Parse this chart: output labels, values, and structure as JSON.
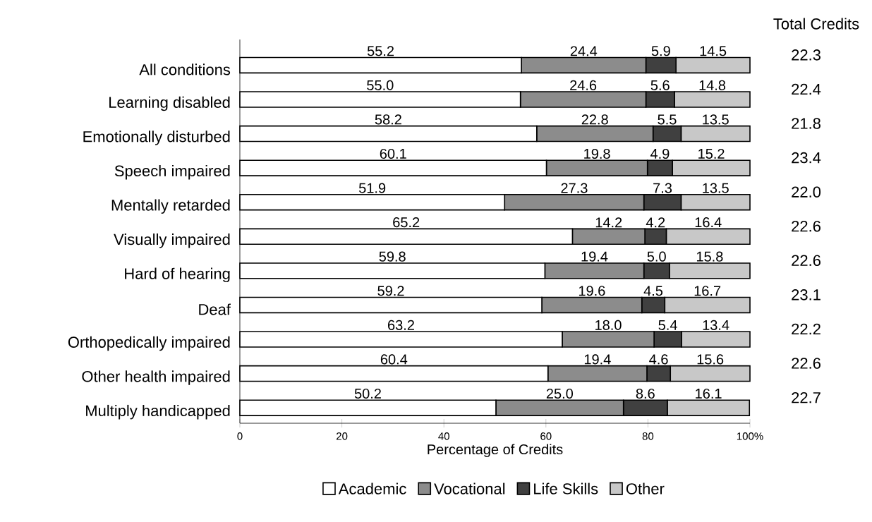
{
  "chart_data": {
    "type": "bar",
    "orientation": "horizontal",
    "stacked": true,
    "categories": [
      "All conditions",
      "Learning disabled",
      "Emotionally disturbed",
      "Speech impaired",
      "Mentally retarded",
      "Visually impaired",
      "Hard of hearing",
      "Deaf",
      "Orthopedically impaired",
      "Other health impaired",
      "Multiply handicapped"
    ],
    "series": [
      {
        "name": "Academic",
        "color": "#ffffff",
        "values": [
          55.2,
          55.0,
          58.2,
          60.1,
          51.9,
          65.2,
          59.8,
          59.2,
          63.2,
          60.4,
          50.2
        ],
        "value_labels": [
          "55.2",
          "55.0",
          "58.2",
          "60.1",
          "51.9",
          "65.2",
          "59.8",
          "59.2",
          "63.2",
          "60.4",
          "50.2"
        ]
      },
      {
        "name": "Vocational",
        "color": "#8c8c8c",
        "values": [
          24.4,
          24.6,
          22.8,
          19.8,
          27.3,
          14.2,
          19.4,
          19.6,
          18.0,
          19.4,
          25.0
        ],
        "value_labels": [
          "24.4",
          "24.6",
          "22.8",
          "19.8",
          "27.3",
          "14.2",
          "19.4",
          "19.6",
          "18.0",
          "19.4",
          "25.0"
        ]
      },
      {
        "name": "Life Skills",
        "color": "#404040",
        "values": [
          5.9,
          5.6,
          5.5,
          4.9,
          7.3,
          4.2,
          5.0,
          4.5,
          5.4,
          4.6,
          8.6
        ],
        "value_labels": [
          "5.9",
          "5.6",
          "5.5",
          "4.9",
          "7.3",
          "4.2",
          "5.0",
          "4.5",
          "5.4",
          "4.6",
          "8.6"
        ]
      },
      {
        "name": "Other",
        "color": "#c8c8c8",
        "values": [
          14.5,
          14.8,
          13.5,
          15.2,
          13.5,
          16.4,
          15.8,
          16.7,
          13.4,
          15.6,
          16.1
        ],
        "value_labels": [
          "14.5",
          "14.8",
          "13.5",
          "15.2",
          "13.5",
          "16.4",
          "15.8",
          "16.7",
          "13.4",
          "15.6",
          "16.1"
        ]
      }
    ],
    "xlim": [
      0,
      100
    ],
    "xticks": [
      0,
      20,
      40,
      60,
      80,
      {
        "value": 100,
        "label": "100%"
      }
    ],
    "xlabel": "Percentage of Credits",
    "legend": "bottom",
    "annotations": [
      "Total Credits",
      "22.3",
      "22.4",
      "21.8",
      "23.4",
      "22.0",
      "22.6",
      "22.6",
      "23.1",
      "22.2",
      "22.6",
      "22.7"
    ]
  }
}
